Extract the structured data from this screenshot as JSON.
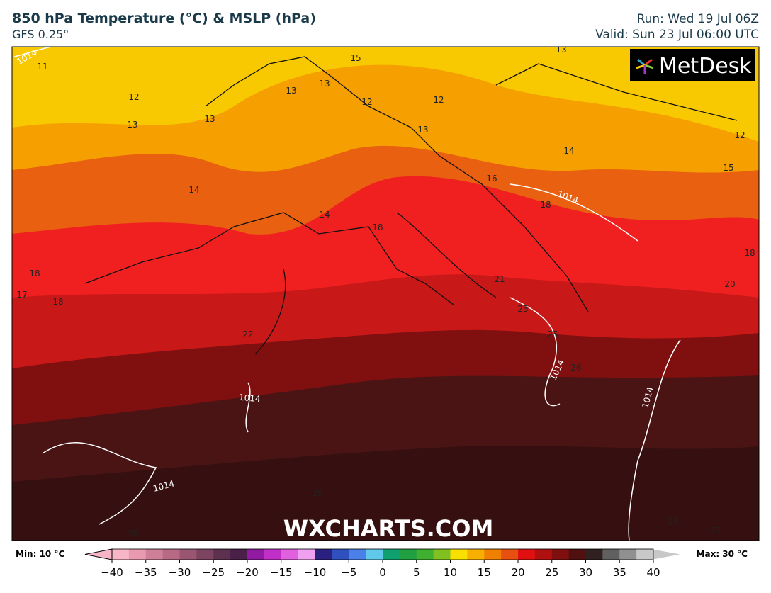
{
  "header": {
    "title": "850 hPa Temperature (°C) & MSLP (hPa)",
    "model": "GFS 0.25°",
    "run": "Run: Wed 19 Jul 06Z",
    "valid": "Valid: Sun 23 Jul 06:00 UTC"
  },
  "logo": "MetDesk",
  "watermark": "WXCHARTS.COM",
  "contour_labels": [
    11,
    12,
    13,
    13,
    13,
    15,
    13,
    12,
    12,
    13,
    13,
    14,
    14,
    14,
    16,
    18,
    18,
    18,
    15,
    12,
    18,
    17,
    18,
    21,
    23,
    25,
    26,
    22,
    20,
    28,
    29,
    27,
    28
  ],
  "isobar_labels": [
    "1014",
    "1014",
    "1014",
    "1014",
    "1014",
    "1014"
  ],
  "colorbar": {
    "min_label": "Min: 10 °C",
    "max_label": "Max: 30 °C",
    "range": [
      -40,
      40
    ],
    "ticks": [
      {
        "value": -40,
        "label": "−40"
      },
      {
        "value": -35,
        "label": "−35"
      },
      {
        "value": -30,
        "label": "−30"
      },
      {
        "value": -25,
        "label": "−25"
      },
      {
        "value": -20,
        "label": "−20"
      },
      {
        "value": -15,
        "label": "−15"
      },
      {
        "value": -10,
        "label": "−10"
      },
      {
        "value": -5,
        "label": "−5"
      },
      0,
      5,
      10,
      15,
      20,
      25,
      30,
      35,
      40
    ],
    "colors": [
      "#f7b6c8",
      "#e89ab0",
      "#d07f98",
      "#b86a84",
      "#9a5670",
      "#7c4460",
      "#5e3050",
      "#4a1f48",
      "#901aa0",
      "#c030c8",
      "#e060e0",
      "#f0a0f0",
      "#2a2080",
      "#3050c0",
      "#4a80e8",
      "#60c8e8",
      "#10a070",
      "#20a040",
      "#40b030",
      "#80c020",
      "#f8e000",
      "#f8b000",
      "#f08000",
      "#e85010",
      "#e01010",
      "#b01010",
      "#801010",
      "#501010",
      "#302020",
      "#606060",
      "#909090",
      "#c8c8c8"
    ]
  }
}
